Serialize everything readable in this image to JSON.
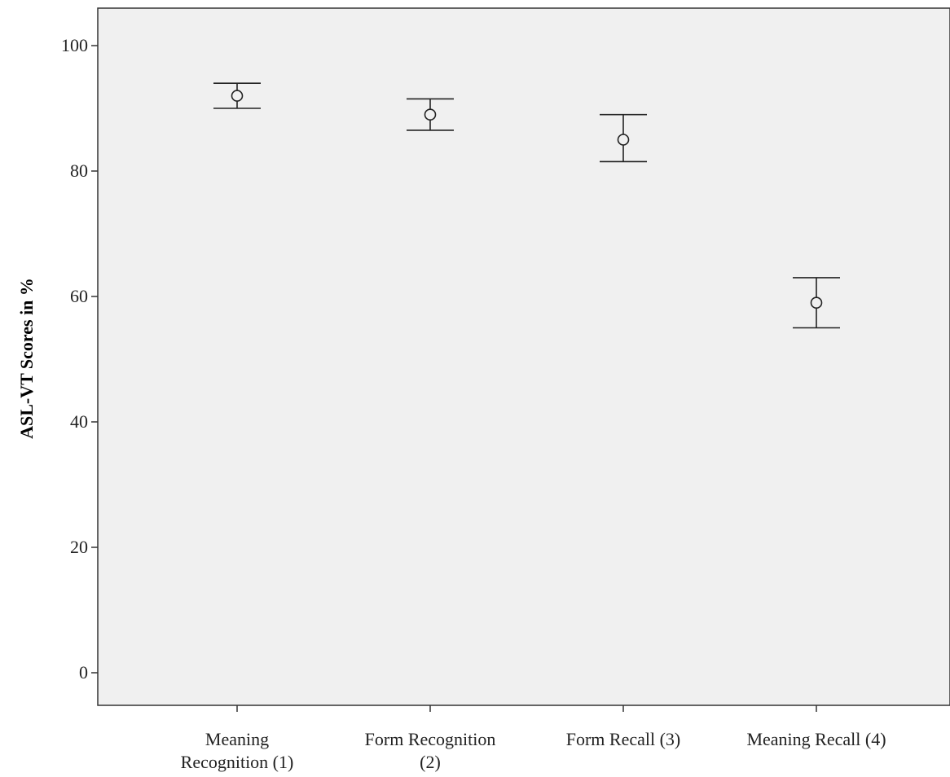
{
  "chart_data": {
    "type": "scatter",
    "subtype": "error-bar",
    "title": "",
    "xlabel": "",
    "ylabel": "ASL-VT Scores in %",
    "ylim": [
      -5,
      105
    ],
    "yticks": [
      0,
      20,
      40,
      60,
      80,
      100
    ],
    "categories": [
      [
        "Meaning",
        "Recognition (1)"
      ],
      [
        "Form Recognition",
        "(2)"
      ],
      [
        "Form Recall (3)"
      ],
      [
        "Meaning Recall (4)"
      ]
    ],
    "series": [
      {
        "values": [
          92,
          89,
          85,
          59
        ],
        "error_low": [
          90,
          86.5,
          81.5,
          55
        ],
        "error_high": [
          94,
          91.5,
          89,
          63
        ]
      }
    ],
    "grid": false,
    "legend": "none"
  },
  "colors": {
    "plot_background": "#f0f0f0",
    "axis": "#333333",
    "marker": "#222222"
  }
}
